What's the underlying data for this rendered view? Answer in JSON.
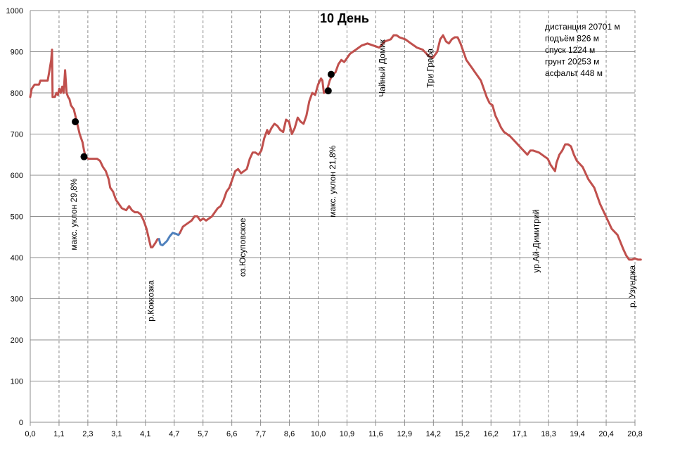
{
  "chart_data": {
    "type": "line",
    "title": "10 День",
    "xlabel": "",
    "ylabel": "",
    "ylim": [
      0,
      1000
    ],
    "xlim": [
      0,
      20.8
    ],
    "y_ticks": [
      "0",
      "100",
      "200",
      "300",
      "400",
      "500",
      "600",
      "700",
      "800",
      "900",
      "1000"
    ],
    "x_ticks": [
      "0,0",
      "1,1",
      "2,3",
      "3,1",
      "4,1",
      "4,7",
      "5,7",
      "6,6",
      "7,7",
      "8,6",
      "10,0",
      "10,9",
      "11,6",
      "12,9",
      "14,2",
      "15,2",
      "16,2",
      "17,1",
      "18,3",
      "19,4",
      "20,4",
      "20,8"
    ],
    "x_tick_values": [
      0,
      1.1,
      2.3,
      3.1,
      4.1,
      4.7,
      5.7,
      6.6,
      7.7,
      8.6,
      10.0,
      10.9,
      11.6,
      12.9,
      14.2,
      15.2,
      16.2,
      17.1,
      18.3,
      19.4,
      20.4,
      20.8
    ],
    "grid": {
      "horizontal": "solid",
      "vertical": "dashed"
    },
    "colors": {
      "ground": "#c0504d",
      "asphalt": "#4f81bd",
      "marker": "#000000"
    },
    "stats": [
      "дистанция 20701 м",
      "подъём 826 м",
      "спуск 1224 м",
      "грунт 20253 м",
      "асфальт 448 м"
    ],
    "series": [
      {
        "color_key": "ground",
        "points": [
          [
            0,
            790
          ],
          [
            0.05,
            810
          ],
          [
            0.15,
            820
          ],
          [
            0.3,
            820
          ],
          [
            0.35,
            830
          ],
          [
            0.5,
            830
          ],
          [
            0.6,
            830
          ],
          [
            0.65,
            850
          ],
          [
            0.72,
            880
          ],
          [
            0.75,
            905
          ],
          [
            0.77,
            790
          ],
          [
            0.85,
            790
          ],
          [
            0.9,
            800
          ],
          [
            0.95,
            795
          ],
          [
            1.0,
            810
          ],
          [
            1.05,
            800
          ],
          [
            1.1,
            815
          ],
          [
            1.15,
            800
          ],
          [
            1.2,
            855
          ],
          [
            1.25,
            800
          ],
          [
            1.3,
            790
          ],
          [
            1.35,
            785
          ],
          [
            1.4,
            770
          ],
          [
            1.5,
            760
          ],
          [
            1.6,
            730
          ],
          [
            1.7,
            700
          ],
          [
            1.8,
            680
          ],
          [
            1.85,
            660
          ],
          [
            1.9,
            645
          ],
          [
            2.0,
            640
          ],
          [
            2.2,
            640
          ],
          [
            2.3,
            640
          ],
          [
            2.4,
            635
          ],
          [
            2.5,
            620
          ],
          [
            2.6,
            610
          ],
          [
            2.7,
            590
          ],
          [
            2.75,
            570
          ],
          [
            2.85,
            560
          ],
          [
            2.95,
            540
          ],
          [
            3.05,
            530
          ],
          [
            3.15,
            520
          ],
          [
            3.3,
            515
          ],
          [
            3.4,
            525
          ],
          [
            3.5,
            515
          ],
          [
            3.6,
            510
          ],
          [
            3.7,
            510
          ],
          [
            3.8,
            505
          ],
          [
            3.9,
            490
          ],
          [
            4.0,
            470
          ],
          [
            4.1,
            440
          ],
          [
            4.15,
            425
          ],
          [
            4.2,
            425
          ],
          [
            4.3,
            435
          ],
          [
            4.38,
            445
          ],
          [
            4.43,
            445
          ]
        ]
      },
      {
        "color_key": "asphalt",
        "points": [
          [
            4.43,
            445
          ],
          [
            4.48,
            432
          ],
          [
            4.55,
            430
          ],
          [
            4.7,
            440
          ],
          [
            4.8,
            452
          ],
          [
            4.9,
            460
          ],
          [
            5.0,
            458
          ],
          [
            5.1,
            455
          ],
          [
            5.15,
            460
          ]
        ]
      },
      {
        "color_key": "ground",
        "points": [
          [
            5.15,
            460
          ],
          [
            5.25,
            475
          ],
          [
            5.35,
            480
          ],
          [
            5.45,
            485
          ],
          [
            5.55,
            490
          ],
          [
            5.65,
            500
          ],
          [
            5.75,
            500
          ],
          [
            5.85,
            490
          ],
          [
            5.95,
            495
          ],
          [
            6.05,
            490
          ],
          [
            6.15,
            495
          ],
          [
            6.25,
            500
          ],
          [
            6.35,
            510
          ],
          [
            6.45,
            520
          ],
          [
            6.55,
            525
          ],
          [
            6.65,
            540
          ],
          [
            6.75,
            560
          ],
          [
            6.85,
            570
          ],
          [
            6.95,
            590
          ],
          [
            7.05,
            610
          ],
          [
            7.15,
            615
          ],
          [
            7.25,
            605
          ],
          [
            7.35,
            610
          ],
          [
            7.45,
            615
          ],
          [
            7.55,
            640
          ],
          [
            7.65,
            655
          ],
          [
            7.75,
            655
          ],
          [
            7.85,
            650
          ],
          [
            7.95,
            660
          ],
          [
            8.05,
            690
          ],
          [
            8.15,
            710
          ],
          [
            8.2,
            700
          ],
          [
            8.3,
            715
          ],
          [
            8.4,
            725
          ],
          [
            8.5,
            720
          ],
          [
            8.6,
            710
          ],
          [
            8.7,
            705
          ],
          [
            8.8,
            735
          ],
          [
            8.9,
            730
          ],
          [
            9.0,
            700
          ],
          [
            9.1,
            715
          ],
          [
            9.2,
            740
          ],
          [
            9.3,
            730
          ],
          [
            9.4,
            725
          ],
          [
            9.5,
            745
          ],
          [
            9.6,
            780
          ],
          [
            9.7,
            800
          ],
          [
            9.8,
            795
          ],
          [
            9.9,
            820
          ],
          [
            10.0,
            835
          ],
          [
            10.05,
            830
          ],
          [
            10.1,
            800
          ],
          [
            10.2,
            805
          ],
          [
            10.3,
            830
          ],
          [
            10.4,
            845
          ],
          [
            10.5,
            850
          ],
          [
            10.6,
            870
          ],
          [
            10.7,
            880
          ],
          [
            10.8,
            875
          ],
          [
            10.9,
            885
          ],
          [
            11.0,
            895
          ],
          [
            11.2,
            905
          ],
          [
            11.4,
            915
          ],
          [
            11.6,
            920
          ],
          [
            11.8,
            915
          ],
          [
            12.0,
            910
          ],
          [
            12.2,
            925
          ],
          [
            12.4,
            930
          ],
          [
            12.5,
            940
          ],
          [
            12.6,
            940
          ],
          [
            12.7,
            935
          ],
          [
            12.9,
            930
          ],
          [
            13.1,
            920
          ],
          [
            13.3,
            910
          ],
          [
            13.5,
            905
          ],
          [
            13.7,
            890
          ],
          [
            13.85,
            885
          ],
          [
            14.0,
            900
          ],
          [
            14.1,
            930
          ],
          [
            14.2,
            940
          ],
          [
            14.3,
            925
          ],
          [
            14.4,
            920
          ],
          [
            14.5,
            930
          ],
          [
            14.6,
            935
          ],
          [
            14.7,
            935
          ],
          [
            14.8,
            920
          ],
          [
            14.9,
            900
          ],
          [
            15.0,
            880
          ],
          [
            15.2,
            860
          ],
          [
            15.3,
            850
          ],
          [
            15.5,
            830
          ],
          [
            15.6,
            810
          ],
          [
            15.7,
            790
          ],
          [
            15.8,
            775
          ],
          [
            15.9,
            770
          ],
          [
            16.0,
            745
          ],
          [
            16.1,
            730
          ],
          [
            16.2,
            715
          ],
          [
            16.3,
            705
          ],
          [
            16.5,
            695
          ],
          [
            16.7,
            680
          ],
          [
            16.9,
            665
          ],
          [
            17.1,
            650
          ],
          [
            17.2,
            660
          ],
          [
            17.3,
            660
          ],
          [
            17.5,
            655
          ],
          [
            17.7,
            645
          ],
          [
            17.8,
            640
          ],
          [
            17.9,
            625
          ],
          [
            18.0,
            615
          ],
          [
            18.05,
            610
          ],
          [
            18.1,
            630
          ],
          [
            18.2,
            650
          ],
          [
            18.3,
            660
          ],
          [
            18.4,
            675
          ],
          [
            18.5,
            675
          ],
          [
            18.6,
            670
          ],
          [
            18.7,
            650
          ],
          [
            18.8,
            635
          ],
          [
            19.0,
            620
          ],
          [
            19.2,
            590
          ],
          [
            19.4,
            570
          ],
          [
            19.6,
            530
          ],
          [
            19.8,
            500
          ],
          [
            20.0,
            470
          ],
          [
            20.2,
            455
          ],
          [
            20.4,
            420
          ],
          [
            20.5,
            405
          ],
          [
            20.6,
            395
          ],
          [
            20.7,
            395
          ],
          [
            20.8,
            398
          ],
          [
            20.9,
            395
          ],
          [
            21.0,
            395
          ]
        ]
      }
    ],
    "markers": [
      [
        1.55,
        730
      ],
      [
        1.85,
        645
      ],
      [
        10.25,
        805
      ],
      [
        10.35,
        845
      ]
    ],
    "annotations": [
      {
        "text": "макс. уклон 29,8%",
        "x": 1.6,
        "y": 505
      },
      {
        "text": "р.Коккозка",
        "x": 4.25,
        "y": 295
      },
      {
        "text": "оз.Юсуповское",
        "x": 7.4,
        "y": 425
      },
      {
        "text": "макс. уклон 21,8%",
        "x": 10.5,
        "y": 585
      },
      {
        "text": "Чайный Домик",
        "x": 12.2,
        "y": 860
      },
      {
        "text": "Три Граба",
        "x": 13.85,
        "y": 860
      },
      {
        "text": "ур.Ай-Димитрий",
        "x": 17.5,
        "y": 440
      },
      {
        "text": "р. Узунджа",
        "x": 20.8,
        "y": 330
      }
    ]
  }
}
